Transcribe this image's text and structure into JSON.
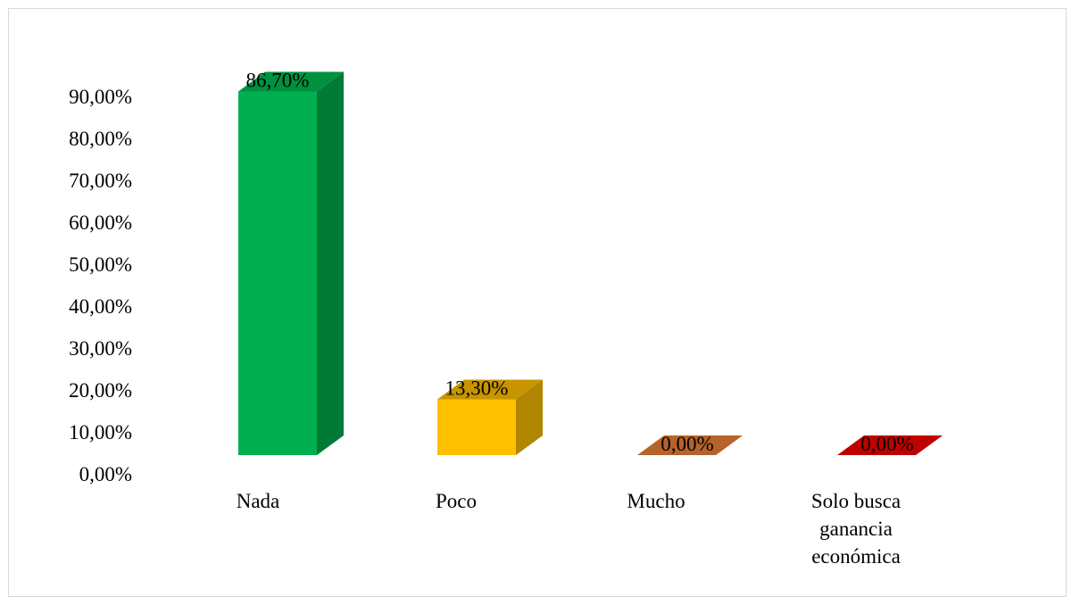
{
  "chart_data": {
    "type": "bar",
    "style": "3d-column",
    "title": "",
    "xlabel": "",
    "ylabel": "",
    "ylim": [
      0,
      90
    ],
    "yticks": [
      "0,00%",
      "10,00%",
      "20,00%",
      "30,00%",
      "40,00%",
      "50,00%",
      "60,00%",
      "70,00%",
      "80,00%",
      "90,00%"
    ],
    "grid": false,
    "legend": "none",
    "categories": [
      "Nada",
      "Poco",
      "Mucho",
      "Solo busca ganancia económica"
    ],
    "category_lines": [
      [
        "Nada"
      ],
      [
        "Poco"
      ],
      [
        "Mucho"
      ],
      [
        "Solo busca",
        "ganancia",
        "económica"
      ]
    ],
    "values": [
      86.7,
      13.3,
      0.0,
      0.0
    ],
    "data_labels": [
      "86,70%",
      "13,30%",
      "0,00%",
      "0,00%"
    ],
    "colors": [
      {
        "front": "#00B050",
        "side": "#007A37",
        "top": "#00913F"
      },
      {
        "front": "#FFC000",
        "side": "#B08500",
        "top": "#C79500"
      },
      {
        "front": "#C0652A",
        "side": "#8A4A1E",
        "top": "#B5622B"
      },
      {
        "front": "#CC0000",
        "side": "#8B0000",
        "top": "#C00000"
      }
    ]
  }
}
